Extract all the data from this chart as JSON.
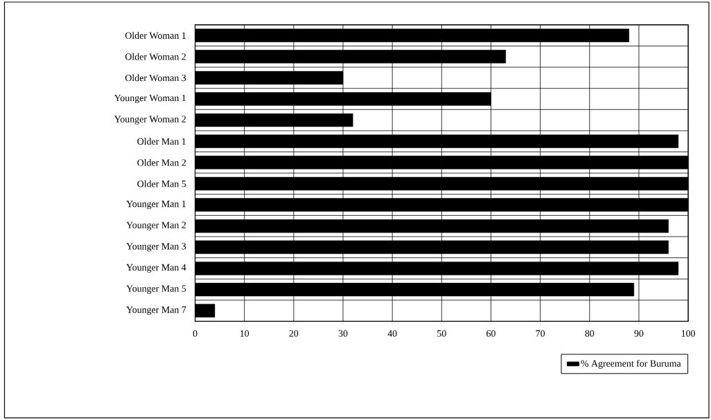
{
  "chart_data": {
    "type": "bar",
    "orientation": "horizontal",
    "categories": [
      "Older Woman 1",
      "Older Woman 2",
      "Older Woman 3",
      "Younger Woman 1",
      "Younger Woman 2",
      "Older Man 1",
      "Older Man 2",
      "Older Man 5",
      "Younger Man 1",
      "Younger Man 2",
      "Younger Man 3",
      "Younger Man 4",
      "Younger Man 5",
      "Younger Man 7"
    ],
    "series": [
      {
        "name": "% Agreement for Buruma",
        "color": "#000000",
        "values": [
          88,
          63,
          30,
          60,
          32,
          98,
          100,
          100,
          100,
          96,
          96,
          98,
          89,
          4
        ]
      }
    ],
    "xlim": [
      0,
      100
    ],
    "xticks": [
      0,
      10,
      20,
      30,
      40,
      50,
      60,
      70,
      80,
      90,
      100
    ],
    "grid": true,
    "legend": "bottom right"
  }
}
